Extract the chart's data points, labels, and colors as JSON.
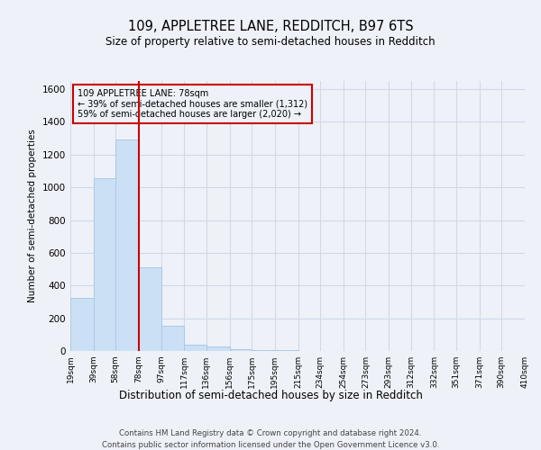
{
  "title": "109, APPLETREE LANE, REDDITCH, B97 6TS",
  "subtitle": "Size of property relative to semi-detached houses in Redditch",
  "xlabel": "Distribution of semi-detached houses by size in Redditch",
  "ylabel": "Number of semi-detached properties",
  "footer_line1": "Contains HM Land Registry data © Crown copyright and database right 2024.",
  "footer_line2": "Contains public sector information licensed under the Open Government Licence v3.0.",
  "property_label": "109 APPLETREE LANE: 78sqm",
  "smaller_pct": "39% of semi-detached houses are smaller (1,312)",
  "larger_pct": "59% of semi-detached houses are larger (2,020)",
  "property_size": 78,
  "bin_edges": [
    19,
    39,
    58,
    78,
    97,
    117,
    136,
    156,
    175,
    195,
    215,
    234,
    254,
    273,
    293,
    312,
    332,
    351,
    371,
    390,
    410
  ],
  "bar_heights": [
    325,
    1055,
    1295,
    510,
    155,
    40,
    25,
    10,
    5,
    3,
    1,
    1,
    1,
    1,
    0,
    0,
    0,
    0,
    0,
    0
  ],
  "bar_color": "#cce0f5",
  "bar_edge_color": "#aac8e8",
  "grid_color": "#d0d8e8",
  "background_color": "#eef2f8",
  "vline_color": "#cc0000",
  "annotation_box_color": "#cc0000",
  "ylim": [
    0,
    1650
  ],
  "yticks": [
    0,
    200,
    400,
    600,
    800,
    1000,
    1200,
    1400,
    1600
  ]
}
